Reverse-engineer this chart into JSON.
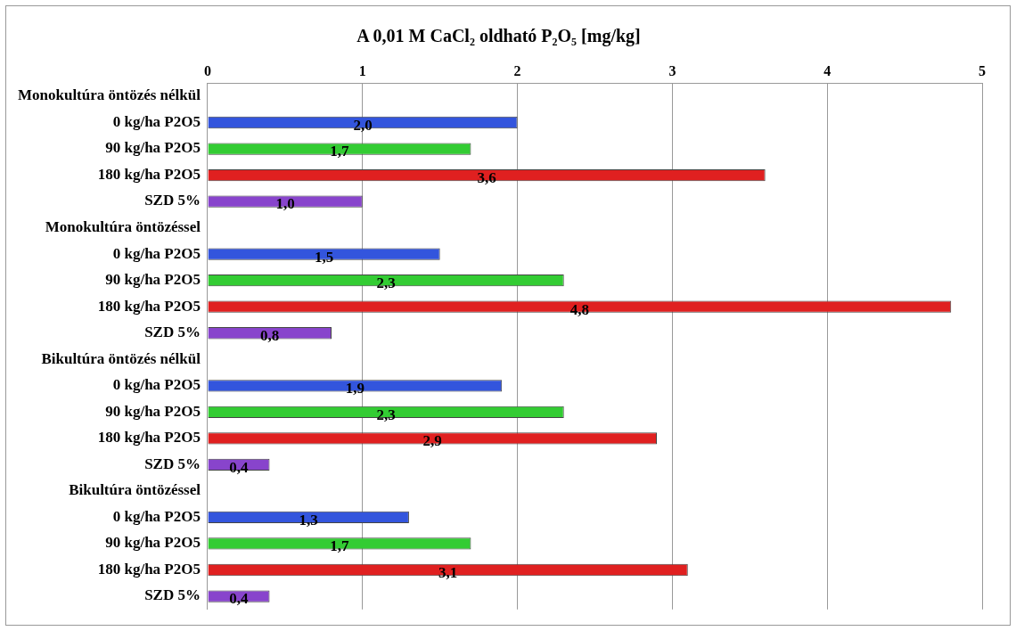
{
  "chart_data": {
    "type": "bar",
    "orientation": "horizontal",
    "title": "A 0,01 M CaCl₂ oldható P₂O₅ [mg/kg]",
    "categories": [
      "Monokultúra öntözés nélkül",
      "0 kg/ha P2O5",
      "90 kg/ha P2O5",
      "180 kg/ha P2O5",
      "SZD 5%",
      "Monokultúra öntözéssel",
      "0 kg/ha P2O5",
      "90 kg/ha P2O5",
      "180 kg/ha P2O5",
      "SZD 5%",
      "Bikultúra öntözés nélkül",
      "0 kg/ha P2O5",
      "90 kg/ha P2O5",
      "180 kg/ha P2O5",
      "SZD 5%",
      "Bikultúra öntözéssel",
      "0 kg/ha P2O5",
      "90 kg/ha P2O5",
      "180 kg/ha P2O5",
      "SZD 5%"
    ],
    "values": [
      null,
      2.0,
      1.7,
      3.6,
      1.0,
      null,
      1.5,
      2.3,
      4.8,
      0.8,
      null,
      1.9,
      2.3,
      2.9,
      0.4,
      null,
      1.3,
      1.7,
      3.1,
      0.4
    ],
    "value_labels": [
      null,
      "2,0",
      "1,7",
      "3,6",
      "1,0",
      null,
      "1,5",
      "2,3",
      "4,8",
      "0,8",
      null,
      "1,9",
      "2,3",
      "2,9",
      "0,4",
      null,
      "1,3",
      "1,7",
      "3,1",
      "0,4"
    ],
    "colors": [
      "#3355dd",
      "#3355dd",
      "#33cc33",
      "#e02020",
      "#8844cc",
      "#3355dd",
      "#3355dd",
      "#33cc33",
      "#e02020",
      "#8844cc",
      "#3355dd",
      "#3355dd",
      "#33cc33",
      "#e02020",
      "#8844cc",
      "#3355dd",
      "#3355dd",
      "#33cc33",
      "#e02020",
      "#8844cc"
    ],
    "xlim": [
      0,
      5
    ],
    "xticks": [
      0,
      1,
      2,
      3,
      4,
      5
    ],
    "grid": "x",
    "legend": false
  }
}
